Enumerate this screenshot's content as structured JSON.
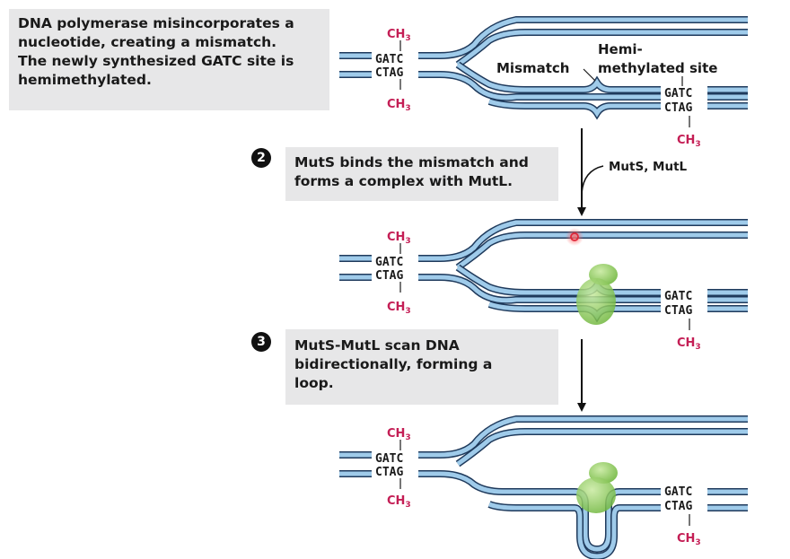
{
  "steps": [
    {
      "number": "",
      "caption_lines": [
        "DNA polymerase misincorporates a",
        "nucleotide, creating a mismatch.",
        "The newly synthesized GATC site is",
        "hemimethylated."
      ]
    },
    {
      "number": "2",
      "caption_lines": [
        "MutS binds the mismatch and",
        "forms a complex with MutL."
      ]
    },
    {
      "number": "3",
      "caption_lines": [
        "MutS-MutL scan DNA",
        "bidirectionally, forming a",
        "loop."
      ]
    }
  ],
  "sequence": {
    "top": "GATC",
    "bottom": "CTAG"
  },
  "methyl": {
    "main": "CH",
    "sub": "3"
  },
  "labels": {
    "mismatch": "Mismatch",
    "hemi_line1": "Hemi-",
    "hemi_line2": "methylated site",
    "enzymes": "MutS, MutL"
  },
  "colors": {
    "strand": "#9fcbea",
    "strand_outline": "#1f3a5c",
    "methyl": "#c41e55",
    "protein": "#7dc242",
    "caption_bg": "#e7e7e8",
    "mismatch_dot": "#e0283a"
  }
}
